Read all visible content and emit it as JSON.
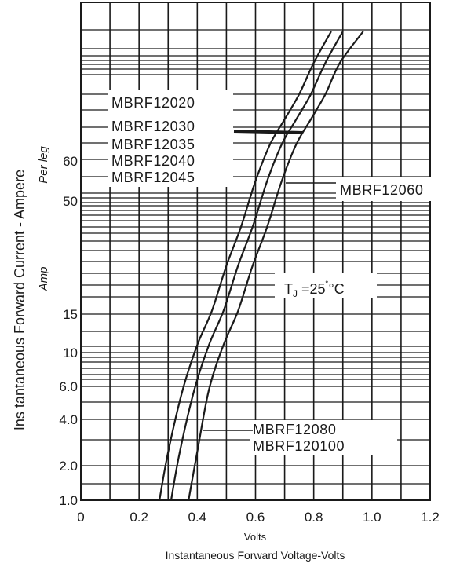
{
  "chart_data": {
    "type": "line",
    "xlabel": "Volts",
    "xlabel2": "Instantaneous Forward Voltage-Volts",
    "ylabel": "Ins tantaneous Forward Current - Ampere",
    "ylabel_sub1": "Per leg",
    "ylabel_sub2": "Amp",
    "xlim": [
      0,
      1.2
    ],
    "y_ticks": [
      {
        "value": 1.0,
        "label": "1.0"
      },
      {
        "value": 2.0,
        "label": "2.0"
      },
      {
        "value": 4.0,
        "label": "4.0"
      },
      {
        "value": 6.0,
        "label": "6.0"
      },
      {
        "value": 10,
        "label": "10"
      },
      {
        "value": 15,
        "label": "15"
      },
      {
        "value": 50,
        "label": "50"
      },
      {
        "value": 60,
        "label": "60"
      }
    ],
    "x_ticks": [
      {
        "value": 0,
        "label": "0"
      },
      {
        "value": 0.2,
        "label": "0.2"
      },
      {
        "value": 0.4,
        "label": "0.4"
      },
      {
        "value": 0.6,
        "label": "0.6"
      },
      {
        "value": 0.8,
        "label": "0.8"
      },
      {
        "value": 1.0,
        "label": "1.0"
      },
      {
        "value": 1.2,
        "label": "1.2"
      }
    ],
    "grid": true,
    "annotation": {
      "base": "T",
      "sub": "J",
      "rest": " =25",
      "unit": "°C"
    },
    "series": [
      {
        "name": "MBRF12020 / MBRF12030 / MBRF12035 / MBRF12040 / MBRF12045",
        "points": [
          [
            0.27,
            1.0
          ],
          [
            0.3,
            2.6
          ],
          [
            0.35,
            5.8
          ],
          [
            0.4,
            11
          ],
          [
            0.45,
            16
          ],
          [
            0.5,
            30
          ],
          [
            0.55,
            42
          ],
          [
            0.6,
            55
          ],
          [
            0.65,
            70
          ],
          [
            0.7,
            85
          ],
          [
            0.75,
            100
          ],
          [
            0.8,
            115
          ],
          [
            0.86,
            130
          ]
        ]
      },
      {
        "name": "MBRF12060",
        "points": [
          [
            0.31,
            1.0
          ],
          [
            0.34,
            2.6
          ],
          [
            0.39,
            5.8
          ],
          [
            0.44,
            11
          ],
          [
            0.49,
            16
          ],
          [
            0.54,
            30
          ],
          [
            0.59,
            42
          ],
          [
            0.64,
            55
          ],
          [
            0.69,
            70
          ],
          [
            0.74,
            85
          ],
          [
            0.79,
            100
          ],
          [
            0.84,
            115
          ],
          [
            0.9,
            130
          ]
        ]
      },
      {
        "name": "MBRF12080 / MBRF120100",
        "points": [
          [
            0.37,
            1.0
          ],
          [
            0.4,
            2.6
          ],
          [
            0.44,
            5.8
          ],
          [
            0.49,
            11
          ],
          [
            0.54,
            16
          ],
          [
            0.59,
            30
          ],
          [
            0.64,
            42
          ],
          [
            0.69,
            55
          ],
          [
            0.74,
            70
          ],
          [
            0.79,
            85
          ],
          [
            0.84,
            100
          ],
          [
            0.89,
            115
          ],
          [
            0.97,
            130
          ]
        ]
      }
    ],
    "labels": {
      "group1": [
        "MBRF12020",
        "MBRF12030",
        "MBRF12035",
        "MBRF12040",
        "MBRF12045"
      ],
      "group2": [
        "MBRF12060"
      ],
      "group3": [
        "MBRF12080",
        "MBRF120100"
      ]
    }
  }
}
